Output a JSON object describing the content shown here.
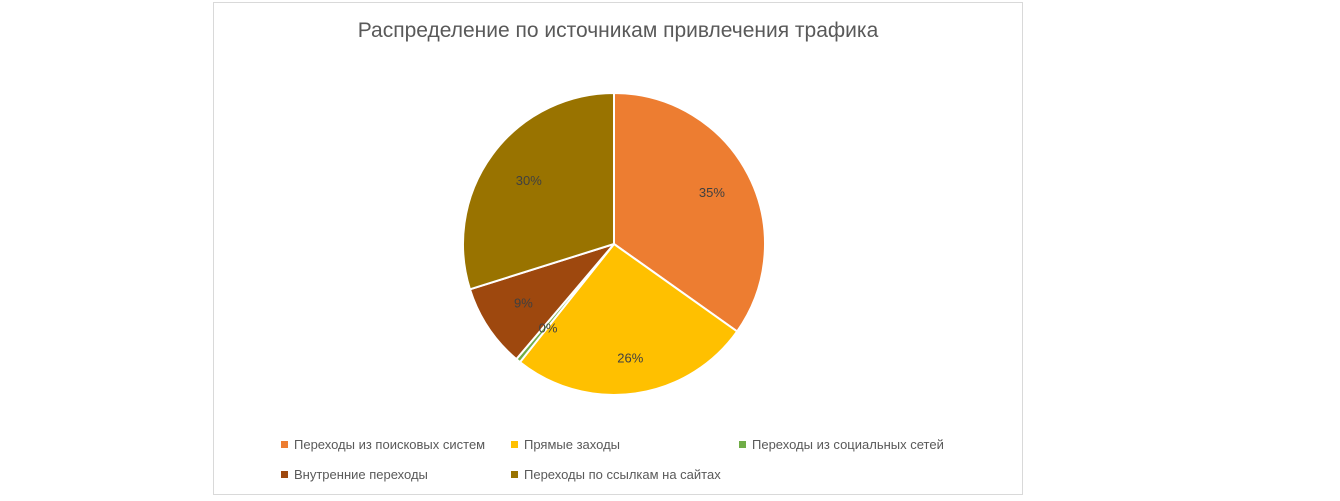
{
  "chart_data": {
    "type": "pie",
    "title": "Распределение по источникам привлечения трафика",
    "categories": [
      "Переходы из поисковых систем",
      "Прямые заходы",
      "Переходы из социальных сетей",
      "Внутренние переходы",
      "Переходы по ссылкам на сайтах"
    ],
    "values": [
      35,
      26,
      0.5,
      9,
      30
    ],
    "data_labels": [
      "35%",
      "26%",
      "0%",
      "9%",
      "30%"
    ],
    "colors": [
      "#ED7D31",
      "#FFC000",
      "#70AD47",
      "#9E480E",
      "#997300"
    ],
    "start_angle": "12 o'clock",
    "direction": "clockwise",
    "legend_position": "bottom"
  }
}
